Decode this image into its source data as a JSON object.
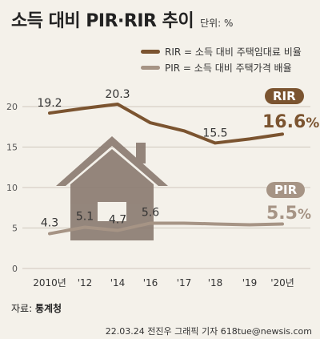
{
  "title": "소득 대비 PIR·RIR 추이",
  "unit": "단위: %",
  "colors": {
    "rir": "#7b5430",
    "pir": "#a69485",
    "house": "#8a7a70",
    "grid": "#cfc8bd",
    "bg": "#f4f1ea"
  },
  "legend": {
    "rir": "RIR = 소득 대비 주택임대료 비율",
    "pir": "PIR = 소득 대비 주택가격 배율"
  },
  "badges": {
    "rir": "RIR",
    "pir": "PIR"
  },
  "final_labels": {
    "rir": {
      "num": "16.6",
      "pct": "%"
    },
    "pir": {
      "num": "5.5",
      "pct": "%"
    }
  },
  "source": {
    "prefix": "자료:",
    "name": "통계청"
  },
  "credit": "22.03.24 전진우 그래픽 기자 618tue@newsis.com",
  "chart_data": {
    "type": "line",
    "categories": [
      "2010년",
      "'12",
      "'14",
      "'16",
      "'17",
      "'18",
      "'19",
      "'20년"
    ],
    "ylim": [
      0,
      20
    ],
    "yticks": [
      "0",
      "5",
      "10",
      "15",
      "20"
    ],
    "grid": true,
    "legend_position": "top-right",
    "series": [
      {
        "name": "RIR",
        "values": [
          19.2,
          19.8,
          20.3,
          18.0,
          17.0,
          15.5,
          16.0,
          16.6
        ],
        "labels": [
          "19.2",
          "",
          "20.3",
          "",
          "",
          "15.5",
          "",
          "16.6%"
        ]
      },
      {
        "name": "PIR",
        "values": [
          4.3,
          5.1,
          4.7,
          5.6,
          5.6,
          5.5,
          5.4,
          5.5
        ],
        "labels": [
          "4.3",
          "5.1",
          "4.7",
          "5.6",
          "",
          "",
          "",
          "5.5%"
        ]
      }
    ]
  }
}
